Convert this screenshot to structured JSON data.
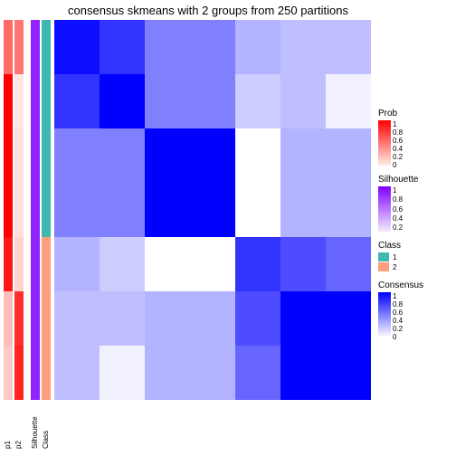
{
  "title": "consensus skmeans with 2 groups from 250 partitions",
  "n_samples": 7,
  "annotation_tracks": [
    {
      "name": "p1",
      "palette": "prob",
      "values": [
        0.55,
        1.0,
        1.0,
        1.0,
        0.9,
        0.2,
        0.15
      ]
    },
    {
      "name": "p2",
      "palette": "prob",
      "values": [
        0.5,
        0.02,
        0.05,
        0.05,
        0.1,
        0.8,
        0.85
      ]
    },
    {
      "name": "Silhouette",
      "palette": "silhouette",
      "values": [
        0.85,
        0.85,
        0.85,
        0.85,
        0.85,
        0.85,
        0.85
      ]
    },
    {
      "name": "Class",
      "palette": "class",
      "values": [
        1,
        1,
        1,
        1,
        2,
        2,
        2
      ]
    }
  ],
  "heatmap": {
    "palette": "consensus",
    "matrix": [
      [
        0.95,
        0.8,
        0.5,
        0.5,
        0.3,
        0.25,
        0.25
      ],
      [
        0.8,
        1.0,
        0.5,
        0.5,
        0.2,
        0.25,
        0.05
      ],
      [
        0.5,
        0.5,
        1.0,
        1.0,
        0.0,
        0.3,
        0.3
      ],
      [
        0.5,
        0.5,
        1.0,
        1.0,
        0.0,
        0.3,
        0.3
      ],
      [
        0.3,
        0.2,
        0.0,
        0.0,
        0.8,
        0.7,
        0.6
      ],
      [
        0.25,
        0.25,
        0.3,
        0.3,
        0.7,
        1.0,
        1.0
      ],
      [
        0.25,
        0.05,
        0.3,
        0.3,
        0.6,
        1.0,
        1.0
      ]
    ]
  },
  "palettes": {
    "prob": {
      "type": "gradient",
      "low": "#fdece6",
      "high": "#ff0000"
    },
    "silhouette": {
      "type": "gradient",
      "low": "#f3ecfb",
      "high": "#8000ff"
    },
    "consensus": {
      "type": "gradient",
      "low": "#ffffff",
      "high": "#0000ff"
    },
    "class": {
      "type": "categorical",
      "map": {
        "1": "#3fb8af",
        "2": "#ff9e7a"
      }
    }
  },
  "legends": [
    {
      "title": "Prob",
      "type": "gradient",
      "palette": "prob",
      "ticks": [
        "1",
        "0.8",
        "0.6",
        "0.4",
        "0.2",
        "0"
      ]
    },
    {
      "title": "Silhouette",
      "type": "gradient",
      "palette": "silhouette",
      "ticks": [
        "1",
        "0.8",
        "0.6",
        "0.4",
        "0.2"
      ]
    },
    {
      "title": "Class",
      "type": "categorical",
      "palette": "class",
      "items": [
        {
          "label": "1",
          "key": "1"
        },
        {
          "label": "2",
          "key": "2"
        }
      ]
    },
    {
      "title": "Consensus",
      "type": "gradient",
      "palette": "consensus",
      "ticks": [
        "1",
        "0.8",
        "0.6",
        "0.4",
        "0.2",
        "0"
      ]
    }
  ],
  "font": {
    "title_size": 13,
    "legend_title_size": 10,
    "tick_size": 8
  }
}
